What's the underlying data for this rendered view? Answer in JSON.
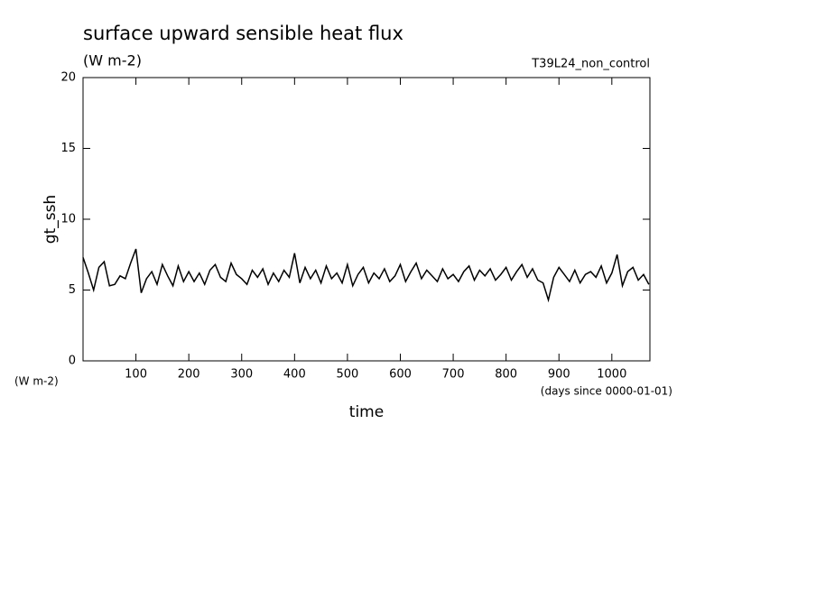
{
  "chart_data": {
    "type": "line",
    "title": "surface upward sensible heat flux",
    "subtitle": "(W m-2)",
    "experiment": "T39L24_non_control",
    "ylabel": "gt_ssh",
    "yunits": "(W m-2)",
    "xlabel": "time",
    "xunits": "(days since 0000-01-01)",
    "xlim": [
      0,
      1072
    ],
    "xticks": [
      100,
      200,
      300,
      400,
      500,
      600,
      700,
      800,
      900,
      1000
    ],
    "ylim": [
      0,
      20
    ],
    "yticks": [
      0,
      5,
      10,
      15,
      20
    ],
    "color": "#000000",
    "x": [
      0,
      10,
      20,
      30,
      40,
      50,
      60,
      70,
      80,
      90,
      100,
      110,
      120,
      130,
      140,
      150,
      160,
      170,
      180,
      190,
      200,
      210,
      220,
      230,
      240,
      250,
      260,
      270,
      280,
      290,
      300,
      310,
      320,
      330,
      340,
      350,
      360,
      370,
      380,
      390,
      400,
      410,
      420,
      430,
      440,
      450,
      460,
      470,
      480,
      490,
      500,
      510,
      520,
      530,
      540,
      550,
      560,
      570,
      580,
      590,
      600,
      610,
      620,
      630,
      640,
      650,
      660,
      670,
      680,
      690,
      700,
      710,
      720,
      730,
      740,
      750,
      760,
      770,
      780,
      790,
      800,
      810,
      820,
      830,
      840,
      850,
      860,
      870,
      880,
      890,
      900,
      910,
      920,
      930,
      940,
      950,
      960,
      970,
      980,
      990,
      1000,
      1010,
      1020,
      1030,
      1040,
      1050,
      1060,
      1070
    ],
    "values": [
      7.3,
      6.2,
      5.0,
      6.6,
      7.0,
      5.3,
      5.4,
      6.0,
      5.8,
      6.9,
      7.9,
      4.8,
      5.8,
      6.3,
      5.4,
      6.8,
      6.0,
      5.3,
      6.7,
      5.6,
      6.3,
      5.6,
      6.2,
      5.4,
      6.4,
      6.8,
      5.9,
      5.6,
      6.9,
      6.1,
      5.8,
      5.4,
      6.4,
      5.9,
      6.5,
      5.4,
      6.2,
      5.6,
      6.4,
      5.9,
      7.6,
      5.5,
      6.6,
      5.8,
      6.4,
      5.5,
      6.7,
      5.8,
      6.2,
      5.5,
      6.8,
      5.3,
      6.1,
      6.6,
      5.5,
      6.2,
      5.8,
      6.5,
      5.6,
      6.0,
      6.8,
      5.6,
      6.3,
      6.9,
      5.8,
      6.4,
      6.0,
      5.6,
      6.5,
      5.8,
      6.1,
      5.6,
      6.3,
      6.7,
      5.7,
      6.4,
      6.0,
      6.5,
      5.7,
      6.1,
      6.6,
      5.7,
      6.3,
      6.8,
      5.9,
      6.5,
      5.7,
      5.5,
      4.3,
      5.9,
      6.6,
      6.1,
      5.6,
      6.4,
      5.5,
      6.1,
      6.3,
      5.9,
      6.7,
      5.5,
      6.2,
      7.5,
      5.3,
      6.3,
      6.6,
      5.7,
      6.1,
      5.4
    ]
  }
}
